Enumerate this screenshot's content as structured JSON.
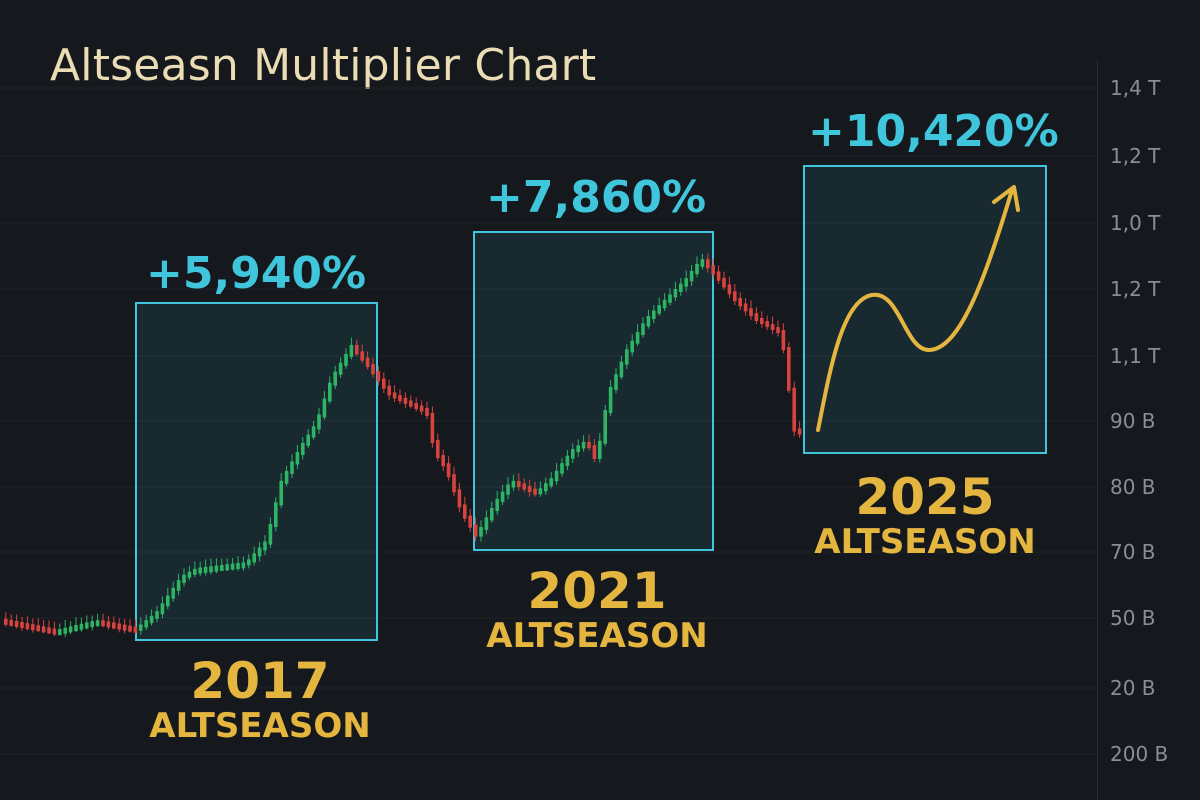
{
  "title": "Altseasn Multiplier Chart",
  "colors": {
    "background": "#15181c",
    "accent_cyan": "#3fc6dc",
    "accent_gold": "#e5b63f",
    "candle_up": "#2db565",
    "candle_down": "#d9433f",
    "title": "#eadcb5",
    "axis_text": "#8a8e94"
  },
  "chart_data": {
    "type": "candlestick",
    "title": "Altseasn Multiplier Chart",
    "y_tick_labels": [
      "1,4 T",
      "1,2 T",
      "1,0 T",
      "1,2 T",
      "1,1 T",
      "90 B",
      "80 B",
      "70 B",
      "50 B",
      "20 B",
      "200 B"
    ],
    "highlights": [
      {
        "change": "+5,940%",
        "year": "2017",
        "label": "ALTSEASON"
      },
      {
        "change": "+7,860%",
        "year": "2021",
        "label": "ALTSEASON"
      },
      {
        "change": "+10,420%",
        "year": "2025",
        "label": "ALTSEASON",
        "projection": "up-arrow"
      }
    ],
    "grid": true
  }
}
